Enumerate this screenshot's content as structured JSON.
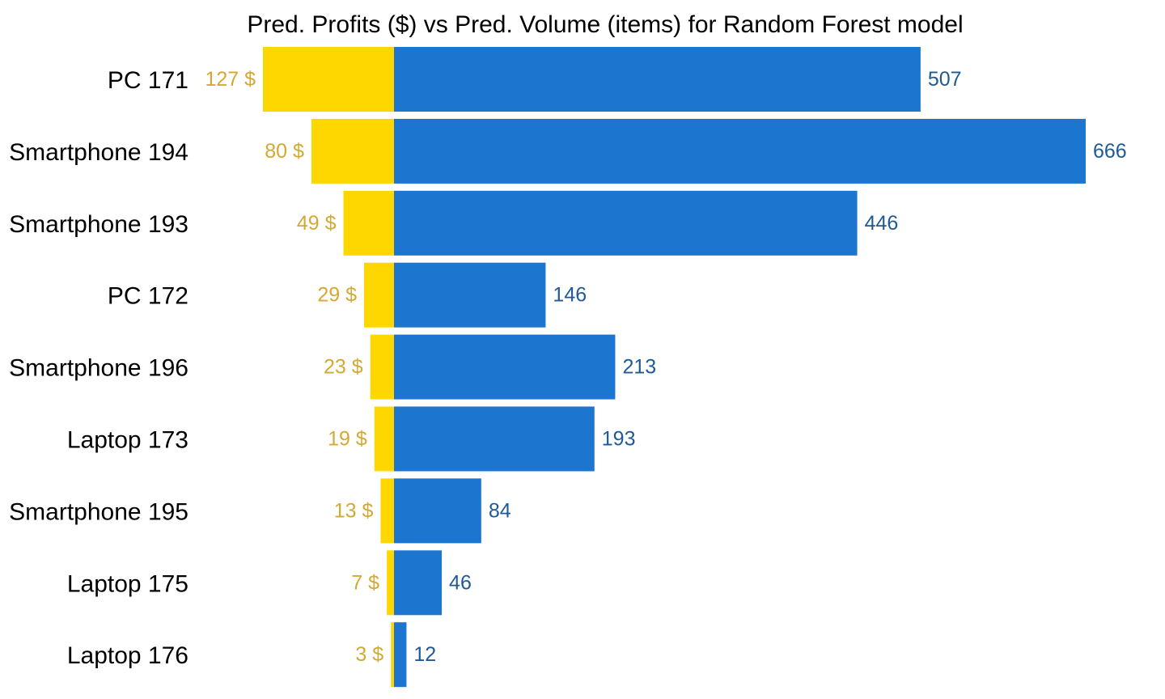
{
  "chart_data": {
    "type": "bar",
    "orientation": "horizontal-diverging",
    "title": "Pred. Profits ($) vs Pred. Volume (items) for Random Forest model",
    "categories": [
      "PC 171",
      "Smartphone 194",
      "Smartphone 193",
      "PC 172",
      "Smartphone 196",
      "Laptop 173",
      "Smartphone 195",
      "Laptop 175",
      "Laptop 176"
    ],
    "series": [
      {
        "values": [
          127,
          80,
          49,
          29,
          23,
          19,
          13,
          7,
          3
        ],
        "labels": [
          "127 $",
          "80 $",
          "49 $",
          "29 $",
          "23 $",
          "19 $",
          "13 $",
          "7 $",
          "3 $"
        ],
        "color": "#FFD700",
        "label_color": "#D4A933",
        "direction": "left"
      },
      {
        "values": [
          507,
          666,
          446,
          146,
          213,
          193,
          84,
          46,
          12
        ],
        "labels": [
          "507",
          "666",
          "446",
          "146",
          "213",
          "193",
          "84",
          "46",
          "12"
        ],
        "color": "#1C75CF",
        "label_color": "#1F5A96",
        "direction": "right"
      }
    ],
    "xlabel": "",
    "ylabel": "",
    "grid": false,
    "legend": "none"
  }
}
